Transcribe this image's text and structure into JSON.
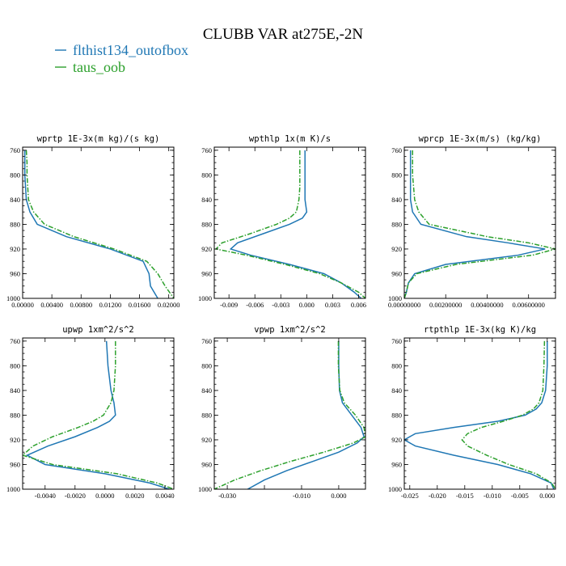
{
  "title": "CLUBB VAR at275E,-2N",
  "legend": [
    {
      "label": "flthist134_outofbox",
      "color": "#1f77b4",
      "dash": "solid"
    },
    {
      "label": "taus_oob",
      "color": "#2ca02c",
      "dash": "dashdot"
    }
  ],
  "chart_data": [
    {
      "type": "line",
      "title": "wprtp  1E-3x(m kg)/(s kg)",
      "xlim": [
        0.0,
        0.0207
      ],
      "ylim": [
        1000,
        755
      ],
      "y_inverted": true,
      "xticks": [
        0.0,
        0.004,
        0.008,
        0.012,
        0.016,
        0.02
      ],
      "xtick_labels": [
        "0.00000",
        "0.00400",
        "0.00800",
        "0.01200",
        "0.01600",
        "0.02000"
      ],
      "yticks": [
        760,
        800,
        840,
        880,
        920,
        960,
        1000
      ],
      "ytick_labels": [
        "760",
        "800",
        "840",
        "880",
        "920",
        "960",
        "1000"
      ],
      "y": [
        760,
        780,
        800,
        820,
        840,
        860,
        880,
        900,
        920,
        940,
        960,
        980,
        1000
      ],
      "series": [
        {
          "name": "flthist134_outofbox",
          "x": [
            0.0003,
            0.0003,
            0.0003,
            0.0004,
            0.0005,
            0.001,
            0.002,
            0.006,
            0.012,
            0.0165,
            0.0173,
            0.0175,
            0.0185
          ]
        },
        {
          "name": "taus_oob",
          "x": [
            0.0005,
            0.0006,
            0.0006,
            0.0007,
            0.0008,
            0.0015,
            0.003,
            0.007,
            0.0125,
            0.017,
            0.0185,
            0.0195,
            0.0207
          ]
        }
      ]
    },
    {
      "type": "line",
      "title": "wpthlp  1x(m K)/s",
      "xlim": [
        -0.0107,
        0.0068
      ],
      "ylim": [
        1000,
        755
      ],
      "y_inverted": true,
      "xticks": [
        -0.009,
        -0.006,
        -0.003,
        0.0,
        0.003,
        0.006
      ],
      "xtick_labels": [
        "-0.009",
        "-0.006",
        "-0.003",
        "0.000",
        "0.003",
        "0.006"
      ],
      "yticks": [
        760,
        800,
        840,
        880,
        920,
        960,
        1000
      ],
      "ytick_labels": [
        "760",
        "800",
        "840",
        "880",
        "920",
        "960",
        "1000"
      ],
      "y": [
        760,
        780,
        800,
        820,
        840,
        860,
        870,
        880,
        895,
        910,
        920,
        930,
        945,
        960,
        975,
        990,
        1000
      ],
      "series": [
        {
          "name": "flthist134_outofbox",
          "x": [
            -0.0002,
            -0.0002,
            -0.0002,
            -0.0002,
            -0.0002,
            0.0,
            -0.0005,
            -0.002,
            -0.005,
            -0.008,
            -0.0088,
            -0.0065,
            -0.002,
            0.002,
            0.004,
            0.0055,
            0.0063
          ]
        },
        {
          "name": "taus_oob",
          "x": [
            -0.0008,
            -0.0008,
            -0.0008,
            -0.0008,
            -0.0009,
            -0.0012,
            -0.002,
            -0.0035,
            -0.0065,
            -0.0098,
            -0.0105,
            -0.007,
            -0.0025,
            0.0015,
            0.004,
            0.006,
            0.0068
          ]
        }
      ]
    },
    {
      "type": "line",
      "title": "wprcp  1E-3x(m/s) (kg/kg)",
      "xlim": [
        0.0,
        0.0073
      ],
      "ylim": [
        1000,
        755
      ],
      "y_inverted": true,
      "xticks": [
        0.0,
        0.002,
        0.004,
        0.006
      ],
      "xtick_labels": [
        "0.00000000",
        "0.00200000",
        "0.00400000",
        "0.00600000"
      ],
      "yticks": [
        760,
        800,
        840,
        880,
        920,
        960,
        1000
      ],
      "ytick_labels": [
        "760",
        "800",
        "840",
        "880",
        "920",
        "960",
        "1000"
      ],
      "y": [
        760,
        800,
        840,
        860,
        880,
        900,
        910,
        920,
        930,
        945,
        960,
        975,
        990,
        1000
      ],
      "series": [
        {
          "name": "flthist134_outofbox",
          "x": [
            0.0003,
            0.0003,
            0.0003,
            0.0004,
            0.0008,
            0.003,
            0.005,
            0.0068,
            0.0055,
            0.002,
            0.0005,
            0.0002,
            0.0001,
            0.0
          ],
          "x_note": ""
        },
        {
          "name": "taus_oob",
          "x": [
            0.0004,
            0.0004,
            0.0005,
            0.0007,
            0.0012,
            0.004,
            0.006,
            0.0073,
            0.0062,
            0.0025,
            0.0006,
            0.0002,
            0.0001,
            0.0
          ]
        }
      ]
    },
    {
      "type": "line",
      "title": "upwp  1xm^2/s^2",
      "xlim": [
        -0.0055,
        0.0046
      ],
      "ylim": [
        1000,
        755
      ],
      "y_inverted": true,
      "xticks": [
        -0.004,
        -0.002,
        0.0,
        0.002,
        0.004
      ],
      "xtick_labels": [
        "-0.0040",
        "-0.0020",
        "0.0000",
        "0.0020",
        "0.0040"
      ],
      "yticks": [
        760,
        800,
        840,
        880,
        920,
        960,
        1000
      ],
      "ytick_labels": [
        "760",
        "800",
        "840",
        "880",
        "920",
        "960",
        "1000"
      ],
      "y": [
        760,
        800,
        840,
        860,
        880,
        890,
        900,
        915,
        930,
        945,
        960,
        975,
        990,
        1000
      ],
      "series": [
        {
          "name": "flthist134_outofbox",
          "x": [
            0.0001,
            0.0002,
            0.0004,
            0.0006,
            0.0007,
            0.0003,
            -0.0005,
            -0.002,
            -0.0038,
            -0.0052,
            -0.004,
            0.0,
            0.003,
            0.0043
          ]
        },
        {
          "name": "taus_oob",
          "x": [
            0.0007,
            0.0007,
            0.0006,
            0.0004,
            -0.0001,
            -0.0008,
            -0.0018,
            -0.0035,
            -0.0048,
            -0.0055,
            -0.0035,
            0.0008,
            0.0035,
            0.0046
          ]
        }
      ]
    },
    {
      "type": "line",
      "title": "vpwp  1xm^2/s^2",
      "xlim": [
        -0.0335,
        0.0072
      ],
      "ylim": [
        1000,
        755
      ],
      "y_inverted": true,
      "xticks": [
        -0.03,
        -0.02,
        -0.01,
        0.0
      ],
      "xtick_labels": [
        "-0.030",
        "-0.010",
        "0.000"
      ],
      "xtick_label_values": [
        -0.03,
        -0.01,
        0.0
      ],
      "yticks": [
        760,
        800,
        840,
        880,
        920,
        960,
        1000
      ],
      "ytick_labels": [
        "760",
        "800",
        "840",
        "880",
        "920",
        "960",
        "1000"
      ],
      "y": [
        760,
        800,
        840,
        860,
        880,
        900,
        915,
        925,
        940,
        955,
        970,
        985,
        1000
      ],
      "series": [
        {
          "name": "flthist134_outofbox",
          "x": [
            0.0,
            0.0,
            0.0002,
            0.001,
            0.0035,
            0.006,
            0.0068,
            0.005,
            0.0,
            -0.007,
            -0.014,
            -0.02,
            -0.0245
          ]
        },
        {
          "name": "taus_oob",
          "x": [
            -0.0001,
            -0.0001,
            0.0003,
            0.0015,
            0.0045,
            0.0068,
            0.0072,
            0.004,
            -0.004,
            -0.013,
            -0.021,
            -0.028,
            -0.0335
          ]
        }
      ]
    },
    {
      "type": "line",
      "title": "rtpthlp  1E-3x(kg K)/kg",
      "xlim": [
        -0.026,
        0.0015
      ],
      "ylim": [
        1000,
        755
      ],
      "y_inverted": true,
      "xticks": [
        -0.025,
        -0.02,
        -0.015,
        -0.01,
        -0.005,
        0.0
      ],
      "xtick_labels": [
        "-0.025",
        "-0.020",
        "-0.015",
        "-0.010",
        "-0.005",
        "0.000"
      ],
      "yticks": [
        760,
        800,
        840,
        880,
        920,
        960,
        1000
      ],
      "ytick_labels": [
        "760",
        "800",
        "840",
        "880",
        "920",
        "960",
        "1000"
      ],
      "y": [
        760,
        800,
        840,
        860,
        870,
        880,
        890,
        900,
        910,
        920,
        930,
        945,
        960,
        975,
        990,
        1000
      ],
      "series": [
        {
          "name": "flthist134_outofbox",
          "x": [
            0.0,
            0.0,
            -0.0003,
            -0.001,
            -0.002,
            -0.004,
            -0.009,
            -0.017,
            -0.024,
            -0.026,
            -0.024,
            -0.017,
            -0.009,
            -0.003,
            0.0007,
            0.0012
          ]
        },
        {
          "name": "taus_oob",
          "x": [
            -0.0005,
            -0.0006,
            -0.0008,
            -0.0015,
            -0.0025,
            -0.0045,
            -0.008,
            -0.012,
            -0.0145,
            -0.0155,
            -0.0145,
            -0.011,
            -0.007,
            -0.002,
            0.0008,
            0.0015
          ]
        }
      ]
    }
  ]
}
